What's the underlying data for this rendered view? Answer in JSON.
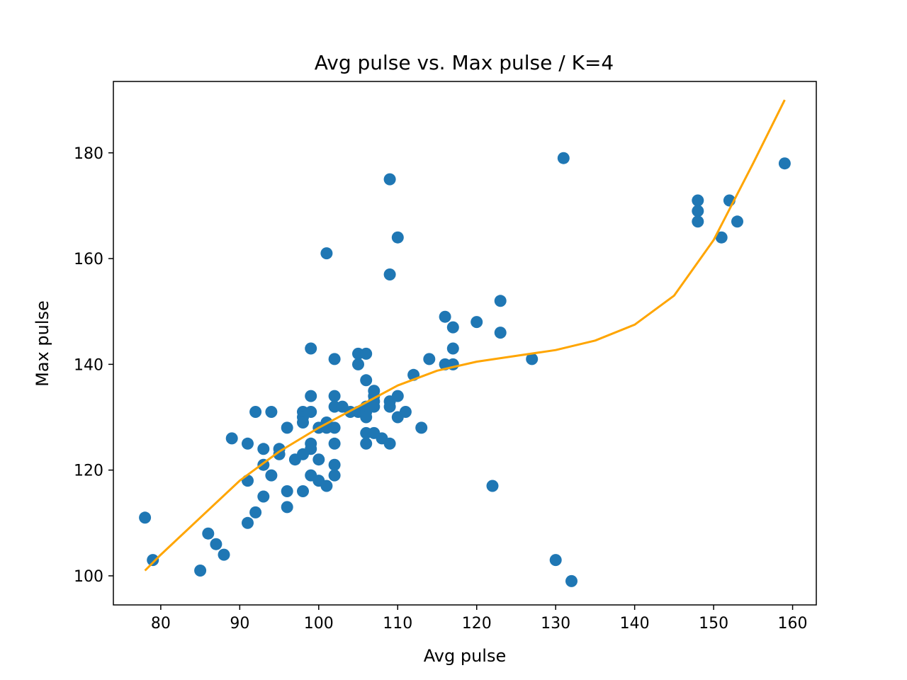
{
  "chart_data": {
    "type": "scatter",
    "title": "Avg pulse vs. Max pulse / K=4",
    "xlabel": "Avg pulse",
    "ylabel": "Max pulse",
    "xlim": [
      74.0,
      163.0
    ],
    "ylim": [
      94.5,
      193.5
    ],
    "xticks": [
      80,
      90,
      100,
      110,
      120,
      130,
      140,
      150,
      160
    ],
    "yticks": [
      100,
      120,
      140,
      160,
      180
    ],
    "grid": false,
    "point_color": "#1f77b4",
    "line_color": "#ffa500",
    "series": [
      {
        "kind": "scatter",
        "points": [
          [
            78,
            111
          ],
          [
            79,
            103
          ],
          [
            85,
            101
          ],
          [
            86,
            108
          ],
          [
            87,
            106
          ],
          [
            88,
            104
          ],
          [
            89,
            126
          ],
          [
            91,
            125
          ],
          [
            91,
            118
          ],
          [
            91,
            110
          ],
          [
            92,
            131
          ],
          [
            92,
            112
          ],
          [
            93,
            124
          ],
          [
            93,
            121
          ],
          [
            93,
            115
          ],
          [
            94,
            131
          ],
          [
            94,
            119
          ],
          [
            95,
            124
          ],
          [
            95,
            123
          ],
          [
            96,
            128
          ],
          [
            96,
            116
          ],
          [
            96,
            113
          ],
          [
            97,
            122
          ],
          [
            98,
            131
          ],
          [
            98,
            130
          ],
          [
            98,
            129
          ],
          [
            98,
            123
          ],
          [
            98,
            116
          ],
          [
            99,
            143
          ],
          [
            99,
            134
          ],
          [
            99,
            131
          ],
          [
            99,
            125
          ],
          [
            99,
            124
          ],
          [
            99,
            119
          ],
          [
            100,
            128
          ],
          [
            100,
            122
          ],
          [
            100,
            118
          ],
          [
            101,
            161
          ],
          [
            101,
            129
          ],
          [
            101,
            128
          ],
          [
            101,
            117
          ],
          [
            102,
            141
          ],
          [
            102,
            134
          ],
          [
            102,
            132
          ],
          [
            102,
            128
          ],
          [
            102,
            125
          ],
          [
            102,
            121
          ],
          [
            102,
            119
          ],
          [
            103,
            132
          ],
          [
            104,
            131
          ],
          [
            105,
            142
          ],
          [
            105,
            140
          ],
          [
            105,
            131
          ],
          [
            106,
            142
          ],
          [
            106,
            137
          ],
          [
            106,
            132
          ],
          [
            106,
            131
          ],
          [
            106,
            130
          ],
          [
            106,
            127
          ],
          [
            106,
            125
          ],
          [
            107,
            135
          ],
          [
            107,
            134
          ],
          [
            107,
            133
          ],
          [
            107,
            132
          ],
          [
            107,
            127
          ],
          [
            108,
            126
          ],
          [
            109,
            175
          ],
          [
            109,
            157
          ],
          [
            109,
            133
          ],
          [
            109,
            132
          ],
          [
            109,
            125
          ],
          [
            110,
            164
          ],
          [
            110,
            134
          ],
          [
            110,
            130
          ],
          [
            111,
            131
          ],
          [
            112,
            138
          ],
          [
            113,
            128
          ],
          [
            114,
            141
          ],
          [
            116,
            149
          ],
          [
            116,
            140
          ],
          [
            117,
            147
          ],
          [
            117,
            143
          ],
          [
            117,
            140
          ],
          [
            120,
            148
          ],
          [
            122,
            117
          ],
          [
            123,
            152
          ],
          [
            123,
            146
          ],
          [
            127,
            141
          ],
          [
            130,
            103
          ],
          [
            131,
            179
          ],
          [
            132,
            99
          ],
          [
            148,
            171
          ],
          [
            148,
            169
          ],
          [
            148,
            167
          ],
          [
            151,
            164
          ],
          [
            152,
            171
          ],
          [
            153,
            167
          ],
          [
            159,
            178
          ]
        ]
      },
      {
        "kind": "line",
        "points": [
          [
            78,
            101
          ],
          [
            80,
            104
          ],
          [
            85,
            111
          ],
          [
            90,
            118
          ],
          [
            95,
            123.5
          ],
          [
            100,
            128
          ],
          [
            105,
            132
          ],
          [
            110,
            136
          ],
          [
            115,
            138.8
          ],
          [
            120,
            140.5
          ],
          [
            125,
            141.6
          ],
          [
            130,
            142.7
          ],
          [
            135,
            144.5
          ],
          [
            140,
            147.5
          ],
          [
            145,
            153
          ],
          [
            150,
            163.5
          ],
          [
            155,
            178
          ],
          [
            159,
            190
          ]
        ]
      }
    ]
  }
}
